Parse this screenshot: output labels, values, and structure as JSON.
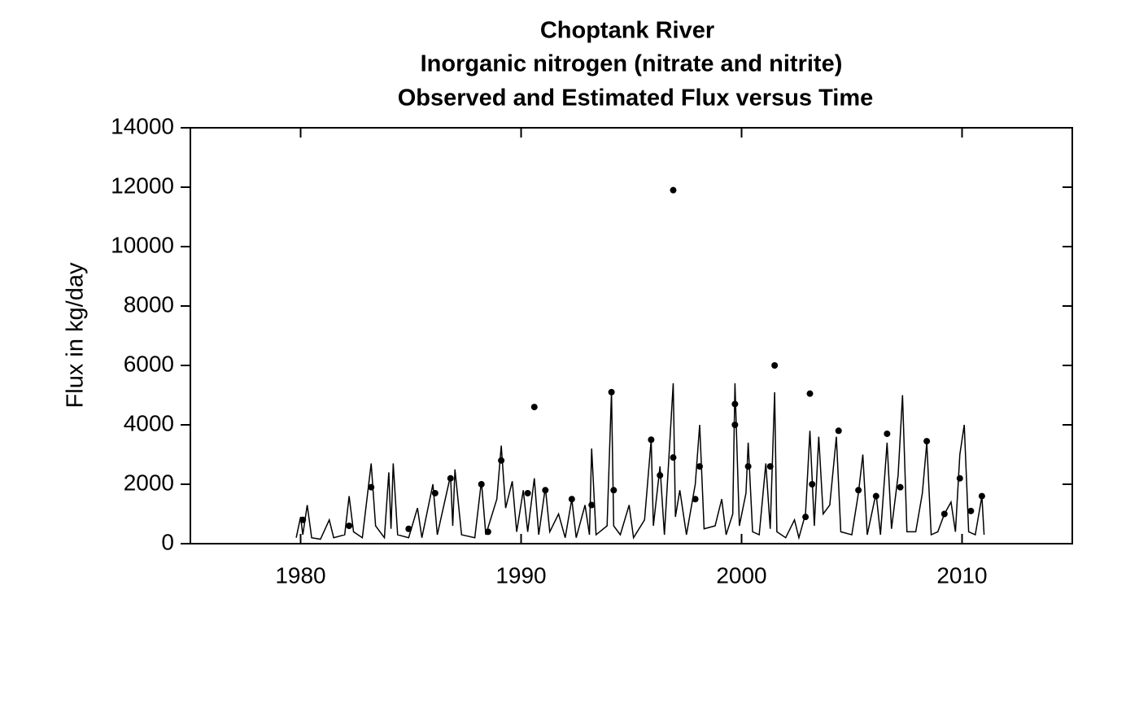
{
  "chart_data": {
    "type": "line",
    "title": [
      "Choptank River",
      "Inorganic nitrogen (nitrate and nitrite)",
      "Observed and Estimated Flux versus Time"
    ],
    "ylabel": "Flux in kg/day",
    "xlim": [
      1975,
      2015
    ],
    "xticks": [
      1980,
      1990,
      2000,
      2010
    ],
    "ylim": [
      0,
      14000
    ],
    "yticks": [
      0,
      2000,
      4000,
      6000,
      8000,
      10000,
      12000,
      14000
    ],
    "grid": false,
    "series": [
      {
        "type": "line",
        "color": "#000000",
        "x": [
          1979.8,
          1980.0,
          1980.1,
          1980.3,
          1980.5,
          1980.9,
          1981.3,
          1981.5,
          1982.0,
          1982.2,
          1982.4,
          1982.8,
          1983.2,
          1983.4,
          1983.8,
          1984.0,
          1984.1,
          1984.2,
          1984.4,
          1984.9,
          1985.3,
          1985.5,
          1986.0,
          1986.2,
          1986.8,
          1986.9,
          1987.0,
          1987.3,
          1987.9,
          1988.2,
          1988.4,
          1988.9,
          1989.1,
          1989.3,
          1989.6,
          1989.8,
          1990.1,
          1990.3,
          1990.6,
          1990.8,
          1991.1,
          1991.3,
          1991.7,
          1992.0,
          1992.3,
          1992.5,
          1992.9,
          1993.1,
          1993.2,
          1993.4,
          1993.9,
          1994.1,
          1994.2,
          1994.5,
          1994.9,
          1995.1,
          1995.6,
          1995.9,
          1996.0,
          1996.3,
          1996.5,
          1996.9,
          1997.0,
          1997.2,
          1997.5,
          1997.9,
          1998.1,
          1998.3,
          1998.8,
          1999.1,
          1999.3,
          1999.6,
          1999.7,
          1999.9,
          2000.2,
          2000.3,
          2000.5,
          2000.8,
          2001.1,
          2001.3,
          2001.5,
          2001.6,
          2002.0,
          2002.4,
          2002.6,
          2002.9,
          2003.1,
          2003.3,
          2003.5,
          2003.7,
          2004.0,
          2004.3,
          2004.5,
          2005.0,
          2005.3,
          2005.5,
          2005.7,
          2006.1,
          2006.3,
          2006.6,
          2006.8,
          2007.1,
          2007.3,
          2007.5,
          2007.9,
          2008.2,
          2008.4,
          2008.6,
          2008.9,
          2009.2,
          2009.5,
          2009.7,
          2009.9,
          2010.1,
          2010.3,
          2010.6,
          2010.9,
          2011.0
        ],
        "values": [
          200,
          900,
          300,
          1300,
          200,
          150,
          800,
          200,
          300,
          1600,
          400,
          200,
          2700,
          600,
          200,
          2400,
          500,
          2700,
          300,
          200,
          1200,
          200,
          2000,
          300,
          2300,
          600,
          2500,
          300,
          200,
          2100,
          300,
          1500,
          3300,
          1200,
          2100,
          400,
          1800,
          400,
          2200,
          300,
          1900,
          400,
          1000,
          200,
          1500,
          200,
          1300,
          300,
          3200,
          300,
          600,
          5100,
          600,
          300,
          1300,
          200,
          800,
          3500,
          600,
          2600,
          300,
          5400,
          900,
          1800,
          300,
          2000,
          4000,
          500,
          600,
          1500,
          300,
          1000,
          5400,
          600,
          1700,
          3400,
          400,
          300,
          2700,
          500,
          5100,
          400,
          200,
          800,
          200,
          1000,
          3800,
          600,
          3600,
          1000,
          1300,
          3600,
          400,
          300,
          1700,
          3000,
          300,
          1700,
          300,
          3400,
          500,
          2300,
          5000,
          400,
          400,
          1700,
          3400,
          300,
          400,
          1000,
          1400,
          400,
          3000,
          4000,
          400,
          300,
          1600,
          300
        ]
      },
      {
        "type": "scatter",
        "color": "#000000",
        "x": [
          1983.2,
          1989.1,
          1990.6,
          1994.1,
          1995.9,
          1996.9,
          1996.9,
          1998.1,
          1999.7,
          1999.7,
          2000.3,
          2001.5,
          2003.1,
          2004.4,
          2006.6,
          2008.4,
          1986.8,
          1988.2,
          1990.3,
          1991.1,
          1992.3,
          1986.1,
          1994.2,
          1996.3,
          2001.3,
          2003.2,
          2005.3,
          2006.1,
          2007.2,
          2009.9,
          2010.9,
          1980.1,
          1982.2,
          1984.9,
          1988.5,
          1993.2,
          1997.9,
          2002.9,
          2009.2,
          2010.4
        ],
        "values": [
          1900,
          2800,
          4600,
          5100,
          3500,
          11900,
          2900,
          2600,
          4700,
          4000,
          2600,
          6000,
          5050,
          3800,
          3700,
          3450,
          2200,
          2000,
          1700,
          1800,
          1500,
          1700,
          1800,
          2300,
          2600,
          2000,
          1800,
          1600,
          1900,
          2200,
          1600,
          800,
          600,
          500,
          400,
          1300,
          1500,
          900,
          1000,
          1100
        ]
      }
    ]
  }
}
